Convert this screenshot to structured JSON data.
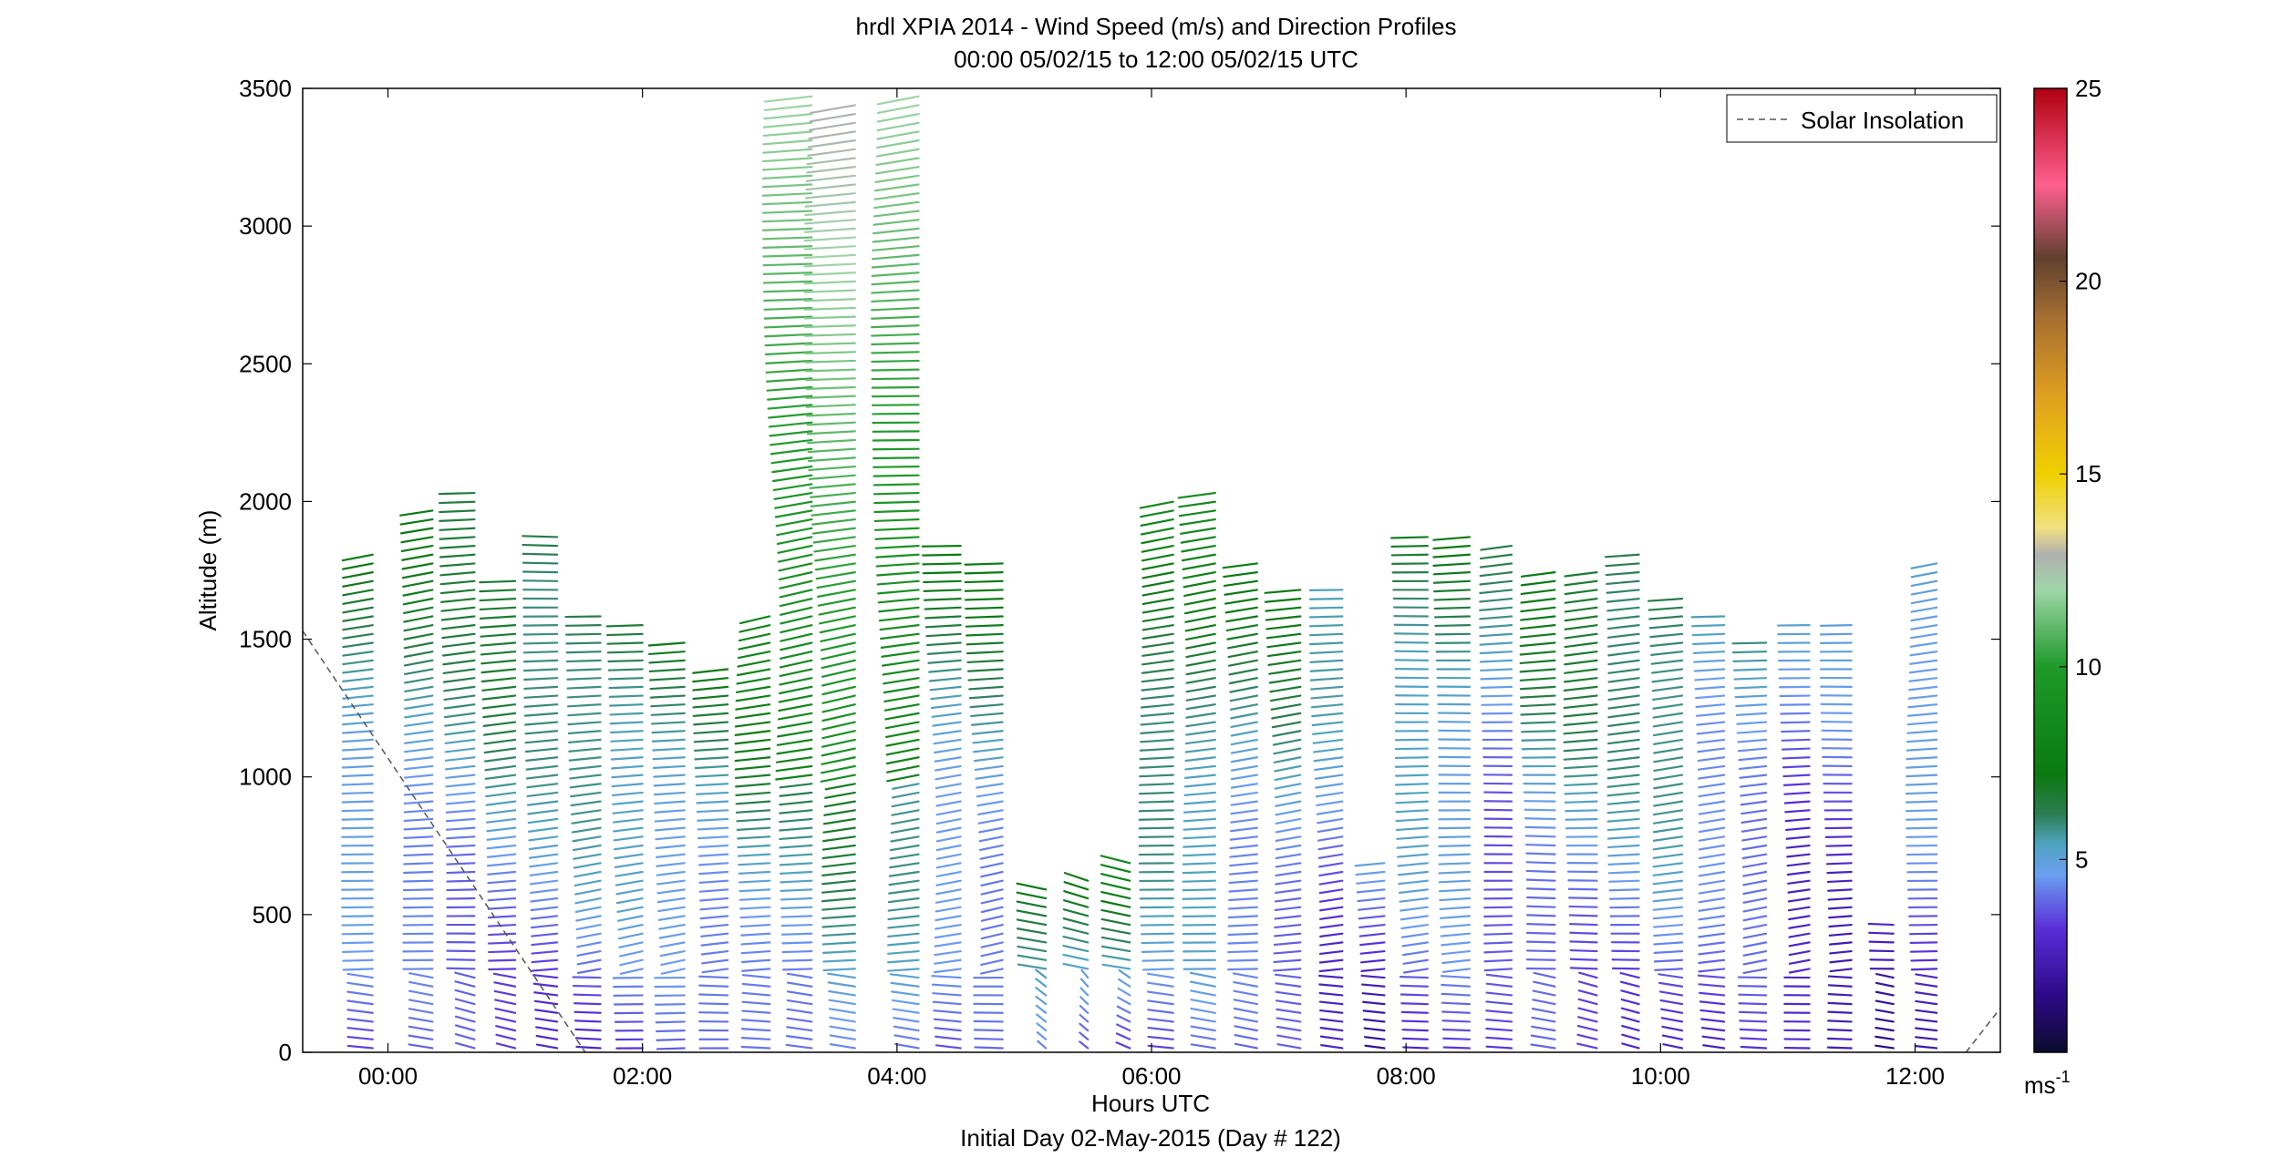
{
  "chart_data": {
    "type": "wind-barb-profile",
    "title": "hrdl XPIA 2014 - Wind Speed (m/s) and Direction Profiles",
    "subtitle": "00:00 05/02/15 to 12:00 05/02/15  UTC",
    "xlabel": "Hours UTC",
    "xlabel2": "Initial Day 02-May-2015 (Day # 122)",
    "ylabel": "Altitude (m)",
    "xlim": [
      -0.67,
      12.67
    ],
    "ylim": [
      0,
      3500
    ],
    "x_ticks": [
      {
        "value": 0,
        "label": "00:00"
      },
      {
        "value": 2,
        "label": "02:00"
      },
      {
        "value": 4,
        "label": "04:00"
      },
      {
        "value": 6,
        "label": "06:00"
      },
      {
        "value": 8,
        "label": "08:00"
      },
      {
        "value": 10,
        "label": "10:00"
      },
      {
        "value": 12,
        "label": "12:00"
      }
    ],
    "y_ticks": [
      0,
      500,
      1000,
      1500,
      2000,
      2500,
      3000,
      3500
    ],
    "legend": {
      "placement": "top-right",
      "entries": [
        "Solar Insolation"
      ]
    },
    "colorbar": {
      "label_main": "ms",
      "label_sup": "-1",
      "range": [
        0,
        25
      ],
      "ticks": [
        5,
        10,
        15,
        20,
        25
      ],
      "stops": [
        {
          "v": 0,
          "color": "#0b0b2e"
        },
        {
          "v": 1.5,
          "color": "#2e0a8a"
        },
        {
          "v": 3.2,
          "color": "#5a2ed8"
        },
        {
          "v": 4.6,
          "color": "#6b9ef0"
        },
        {
          "v": 5.4,
          "color": "#4fa3c0"
        },
        {
          "v": 6.2,
          "color": "#2b7d50"
        },
        {
          "v": 7.2,
          "color": "#0a7a10"
        },
        {
          "v": 10,
          "color": "#1e9a2a"
        },
        {
          "v": 12,
          "color": "#9fd6a8"
        },
        {
          "v": 12.9,
          "color": "#b0b0b0"
        },
        {
          "v": 13.6,
          "color": "#f0e080"
        },
        {
          "v": 15,
          "color": "#f0d000"
        },
        {
          "v": 17,
          "color": "#e0a020"
        },
        {
          "v": 19,
          "color": "#a87030"
        },
        {
          "v": 20.6,
          "color": "#604030"
        },
        {
          "v": 22.5,
          "color": "#ff6090"
        },
        {
          "v": 25,
          "color": "#b00010"
        }
      ]
    },
    "solar_insolation": {
      "segments": [
        [
          [
            -0.67,
            1530
          ],
          [
            1.55,
            0
          ]
        ],
        [
          [
            12.4,
            0
          ],
          [
            12.67,
            160
          ]
        ]
      ]
    },
    "profiles": [
      {
        "t": -0.12,
        "top": 1830,
        "low": 0,
        "dir": 250,
        "spd": 6
      },
      {
        "t": 0.35,
        "top": 1980,
        "low": 0,
        "dir": 250,
        "spd": 6
      },
      {
        "t": 0.68,
        "top": 2060,
        "low": 0,
        "dir": 260,
        "spd": 6
      },
      {
        "t": 1.0,
        "top": 1720,
        "low": 0,
        "dir": 260,
        "spd": 6
      },
      {
        "t": 1.33,
        "top": 1900,
        "low": 0,
        "dir": 260,
        "spd": 6
      },
      {
        "t": 1.67,
        "top": 1600,
        "low": 0,
        "dir": 250,
        "spd": 6
      },
      {
        "t": 2.0,
        "top": 1560,
        "low": 0,
        "dir": 245,
        "spd": 6
      },
      {
        "t": 2.33,
        "top": 1500,
        "low": 0,
        "dir": 240,
        "spd": 6
      },
      {
        "t": 2.67,
        "top": 1420,
        "low": 0,
        "dir": 240,
        "spd": 6
      },
      {
        "t": 3.0,
        "top": 1600,
        "low": 0,
        "dir": 240,
        "spd": 7
      },
      {
        "t": 3.33,
        "top": 3500,
        "low": 0,
        "dir": 245,
        "spd": 8
      },
      {
        "t": 3.67,
        "top": 3470,
        "low": 0,
        "dir": 245,
        "spd": 9
      },
      {
        "t": 4.17,
        "top": 3480,
        "low": 0,
        "dir": 250,
        "spd": 8
      },
      {
        "t": 4.5,
        "top": 1860,
        "low": 0,
        "dir": 250,
        "spd": 6
      },
      {
        "t": 4.83,
        "top": 1800,
        "low": 0,
        "dir": 245,
        "spd": 6
      },
      {
        "t": 5.17,
        "top": 620,
        "low": 0,
        "dir": 320,
        "spd": 7
      },
      {
        "t": 5.5,
        "top": 650,
        "low": 0,
        "dir": 320,
        "spd": 7
      },
      {
        "t": 5.83,
        "top": 700,
        "low": 0,
        "dir": 300,
        "spd": 7
      },
      {
        "t": 6.17,
        "top": 2000,
        "low": 0,
        "dir": 250,
        "spd": 7
      },
      {
        "t": 6.5,
        "top": 2040,
        "low": 0,
        "dir": 250,
        "spd": 7
      },
      {
        "t": 6.83,
        "top": 1800,
        "low": 0,
        "dir": 250,
        "spd": 6
      },
      {
        "t": 7.17,
        "top": 1700,
        "low": 0,
        "dir": 250,
        "spd": 6
      },
      {
        "t": 7.5,
        "top": 1700,
        "low": 0,
        "dir": 255,
        "spd": 5
      },
      {
        "t": 7.83,
        "top": 700,
        "low": 0,
        "dir": 265,
        "spd": 4
      },
      {
        "t": 8.17,
        "top": 1900,
        "low": 0,
        "dir": 255,
        "spd": 6
      },
      {
        "t": 8.5,
        "top": 1880,
        "low": 0,
        "dir": 255,
        "spd": 6
      },
      {
        "t": 8.83,
        "top": 1850,
        "low": 0,
        "dir": 255,
        "spd": 5
      },
      {
        "t": 9.17,
        "top": 1760,
        "low": 0,
        "dir": 260,
        "spd": 6
      },
      {
        "t": 9.5,
        "top": 1760,
        "low": 0,
        "dir": 260,
        "spd": 6
      },
      {
        "t": 9.83,
        "top": 1830,
        "low": 0,
        "dir": 260,
        "spd": 6
      },
      {
        "t": 10.17,
        "top": 1650,
        "low": 0,
        "dir": 255,
        "spd": 6
      },
      {
        "t": 10.5,
        "top": 1600,
        "low": 0,
        "dir": 255,
        "spd": 5
      },
      {
        "t": 10.83,
        "top": 1500,
        "low": 0,
        "dir": 250,
        "spd": 5
      },
      {
        "t": 11.17,
        "top": 1580,
        "low": 0,
        "dir": 250,
        "spd": 4
      },
      {
        "t": 11.5,
        "top": 1560,
        "low": 0,
        "dir": 255,
        "spd": 4
      },
      {
        "t": 11.83,
        "top": 480,
        "low": 0,
        "dir": 270,
        "spd": 3
      },
      {
        "t": 12.17,
        "top": 1800,
        "low": 0,
        "dir": 250,
        "spd": 5
      }
    ]
  }
}
